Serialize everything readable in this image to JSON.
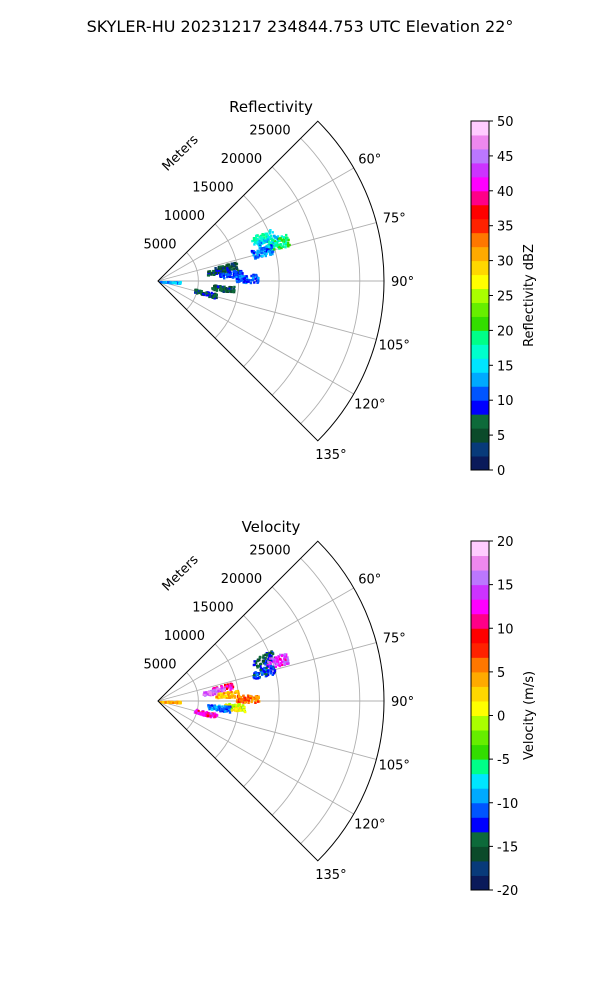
{
  "suptitle": "SKYLER-HU  20231217  234844.753 UTC Elevation 22°",
  "colors": {
    "axes": "#000000",
    "grid": "#b0b0b0",
    "reflectivity_cmap": [
      "#0a1a5a",
      "#083a7a",
      "#0b4a2a",
      "#0d6a3a",
      "#0000ff",
      "#0055ff",
      "#00aaff",
      "#00e5ff",
      "#00ffcc",
      "#00ff88",
      "#33dd00",
      "#66ee00",
      "#aaff00",
      "#ffff00",
      "#ffd700",
      "#ffaa00",
      "#ff7700",
      "#ff2200",
      "#ff0000",
      "#ff0088",
      "#ff00ff",
      "#cc33ff",
      "#bb77ff",
      "#ee88ee",
      "#ffccff"
    ],
    "velocity_cmap": [
      "#0a1a5a",
      "#083a7a",
      "#0b4a2a",
      "#0d6a3a",
      "#0000ff",
      "#0055ff",
      "#00aaff",
      "#00e5ff",
      "#00ff88",
      "#33dd00",
      "#66ee00",
      "#aaff00",
      "#ffff00",
      "#ffd700",
      "#ffaa00",
      "#ff7700",
      "#ff2200",
      "#ff0000",
      "#ff0088",
      "#ff00ff",
      "#cc33ff",
      "#bb77ff",
      "#ee88ee",
      "#ffccff"
    ]
  },
  "chart_data": [
    {
      "type": "polar-sector",
      "title": "Reflectivity",
      "r_label": "Meters",
      "r_ticks": [
        "5000",
        "10000",
        "15000",
        "20000",
        "25000"
      ],
      "r_tick_values": [
        5000,
        10000,
        15000,
        20000,
        25000
      ],
      "r_max": 28000,
      "theta_range_deg": [
        45,
        135
      ],
      "theta_ticks": [
        "60°",
        "75°",
        "90°",
        "105°",
        "120°",
        "135°"
      ],
      "theta_tick_values": [
        60,
        75,
        90,
        105,
        120,
        135
      ],
      "colorbar": {
        "label": "Reflectivity dBZ",
        "range": [
          0,
          50
        ],
        "ticks": [
          "0",
          "5",
          "10",
          "15",
          "20",
          "25",
          "30",
          "35",
          "40",
          "45",
          "50"
        ]
      },
      "clusters": [
        {
          "theta": 67,
          "r": 14000,
          "value": 17
        },
        {
          "theta": 70,
          "r": 14500,
          "value": 14
        },
        {
          "theta": 72,
          "r": 15500,
          "value": 19
        },
        {
          "theta": 74,
          "r": 13500,
          "value": 12
        },
        {
          "theta": 78,
          "r": 8500,
          "value": 5
        },
        {
          "theta": 80,
          "r": 7500,
          "value": 7
        },
        {
          "theta": 84,
          "r": 9000,
          "value": 10
        },
        {
          "theta": 88,
          "r": 11000,
          "value": 11
        },
        {
          "theta": 92,
          "r": 1300,
          "value": 13
        },
        {
          "theta": 96,
          "r": 8000,
          "value": 6
        },
        {
          "theta": 104,
          "r": 6000,
          "value": 7
        }
      ]
    },
    {
      "type": "polar-sector",
      "title": "Velocity",
      "r_label": "Meters",
      "r_ticks": [
        "5000",
        "10000",
        "15000",
        "20000",
        "25000"
      ],
      "r_tick_values": [
        5000,
        10000,
        15000,
        20000,
        25000
      ],
      "r_max": 28000,
      "theta_range_deg": [
        45,
        135
      ],
      "theta_ticks": [
        "60°",
        "75°",
        "90°",
        "105°",
        "120°",
        "135°"
      ],
      "theta_tick_values": [
        60,
        75,
        90,
        105,
        120,
        135
      ],
      "colorbar": {
        "label": "Velocity (m/s)",
        "range": [
          -20,
          20
        ],
        "ticks": [
          "-20",
          "-15",
          "-10",
          "-5",
          "0",
          "5",
          "10",
          "15",
          "20"
        ]
      },
      "clusters": [
        {
          "theta": 68,
          "r": 14000,
          "value": -14
        },
        {
          "theta": 71,
          "r": 15500,
          "value": 14
        },
        {
          "theta": 74,
          "r": 13500,
          "value": -12
        },
        {
          "theta": 78,
          "r": 8000,
          "value": 11
        },
        {
          "theta": 80,
          "r": 7000,
          "value": 16
        },
        {
          "theta": 84,
          "r": 8500,
          "value": 3
        },
        {
          "theta": 88,
          "r": 11000,
          "value": 6
        },
        {
          "theta": 91,
          "r": 1300,
          "value": 4
        },
        {
          "theta": 94,
          "r": 9500,
          "value": 0
        },
        {
          "theta": 96,
          "r": 7500,
          "value": -10
        },
        {
          "theta": 104,
          "r": 6000,
          "value": 12
        }
      ]
    }
  ]
}
